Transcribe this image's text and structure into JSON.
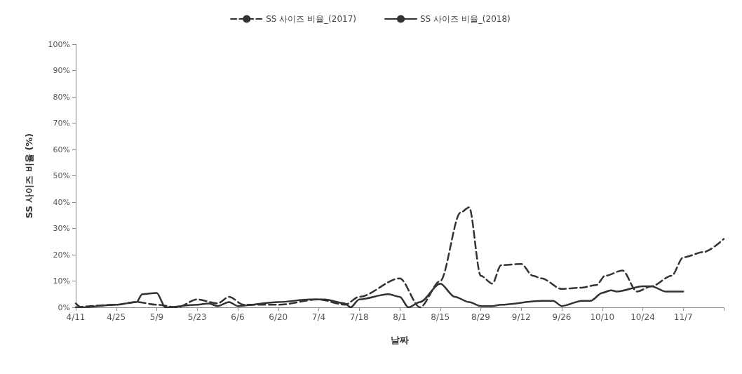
{
  "chart_data": {
    "type": "line",
    "xlabel": "날짜",
    "ylabel": "SS 사이즈 비율 (%)",
    "legend": "top",
    "grid": false,
    "marker": "none",
    "xlim": [
      "--04-11",
      "--11-21"
    ],
    "xticks": [
      {
        "value": "--04-11",
        "label": "4/11"
      },
      {
        "value": "--04-25",
        "label": "4/25"
      },
      {
        "value": "--05-09",
        "label": "5/9"
      },
      {
        "value": "--05-23",
        "label": "5/23"
      },
      {
        "value": "--06-06",
        "label": "6/6"
      },
      {
        "value": "--06-20",
        "label": "6/20"
      },
      {
        "value": "--07-04",
        "label": "7/4"
      },
      {
        "value": "--07-18",
        "label": "7/18"
      },
      {
        "value": "--08-01",
        "label": "8/1"
      },
      {
        "value": "--08-15",
        "label": "8/15"
      },
      {
        "value": "--08-29",
        "label": "8/29"
      },
      {
        "value": "--09-12",
        "label": "9/12"
      },
      {
        "value": "--09-26",
        "label": "9/26"
      },
      {
        "value": "--10-10",
        "label": "10/10"
      },
      {
        "value": "--10-24",
        "label": "10/24"
      },
      {
        "value": "--11-07",
        "label": "11/7"
      },
      {
        "value": "--11-21",
        "label": null
      }
    ],
    "ylim": [
      0,
      100
    ],
    "yticks": [
      {
        "value": 0,
        "label": "0%"
      },
      {
        "value": 10,
        "label": "10%"
      },
      {
        "value": 20,
        "label": "20%"
      },
      {
        "value": 30,
        "label": "30%"
      },
      {
        "value": 40,
        "label": "40%"
      },
      {
        "value": 50,
        "label": "50%"
      },
      {
        "value": 60,
        "label": "60%"
      },
      {
        "value": 70,
        "label": "70%"
      },
      {
        "value": 80,
        "label": "80%"
      },
      {
        "value": 90,
        "label": "90%"
      },
      {
        "value": 100,
        "label": "100%"
      }
    ],
    "series": [
      {
        "name": "SS 사이즈 비율_(2017)",
        "color": "#333333",
        "line_style": "dashed",
        "x": [
          "--04-11",
          "--04-25",
          "--05-02",
          "--05-09",
          "--05-16",
          "--05-23",
          "--05-30",
          "--06-03",
          "--06-08",
          "--06-20",
          "--07-04",
          "--07-13",
          "--07-18",
          "--08-01",
          "--08-08",
          "--08-15",
          "--08-22",
          "--08-25",
          "--08-29",
          "--09-02",
          "--09-05",
          "--09-12",
          "--09-16",
          "--09-19",
          "--09-26",
          "--10-03",
          "--10-08",
          "--10-11",
          "--10-17",
          "--10-22",
          "--10-27",
          "--11-03",
          "--11-07",
          "--11-14",
          "--11-21"
        ],
        "values": [
          0,
          1,
          2,
          1,
          0,
          3,
          1.5,
          4,
          1,
          1,
          3,
          1,
          4,
          11,
          0,
          10,
          36,
          38,
          12,
          9,
          16,
          16.5,
          12,
          11,
          7,
          7.5,
          8.5,
          12,
          14,
          6,
          8,
          12,
          19,
          21,
          26
        ]
      },
      {
        "name": "SS 사이즈 비율_(2018)",
        "color": "#333333",
        "line_style": "solid",
        "x": [
          "--04-11",
          "--04-13",
          "--04-25",
          "--05-02",
          "--05-04",
          "--05-09",
          "--05-12",
          "--05-23",
          "--05-27",
          "--05-30",
          "--06-03",
          "--06-06",
          "--06-20",
          "--07-01",
          "--07-06",
          "--07-13",
          "--07-15",
          "--07-18",
          "--07-28",
          "--08-01",
          "--08-04",
          "--08-08",
          "--08-15",
          "--08-20",
          "--08-25",
          "--08-29",
          "--09-02",
          "--09-05",
          "--09-19",
          "--09-23",
          "--09-26",
          "--10-03",
          "--10-06",
          "--10-10",
          "--10-13",
          "--10-15",
          "--10-24",
          "--10-27",
          "--11-01",
          "--11-07"
        ],
        "values": [
          1.5,
          0,
          1,
          2,
          5,
          5.5,
          0,
          1,
          1.5,
          0.5,
          2,
          0.5,
          2,
          3,
          3,
          1.5,
          0,
          3,
          5,
          4,
          0,
          2,
          9,
          4,
          2,
          0.5,
          0.5,
          1,
          2.5,
          2.5,
          0.5,
          2.5,
          2.5,
          5.5,
          6.5,
          6,
          8,
          8,
          6,
          6
        ]
      }
    ]
  }
}
